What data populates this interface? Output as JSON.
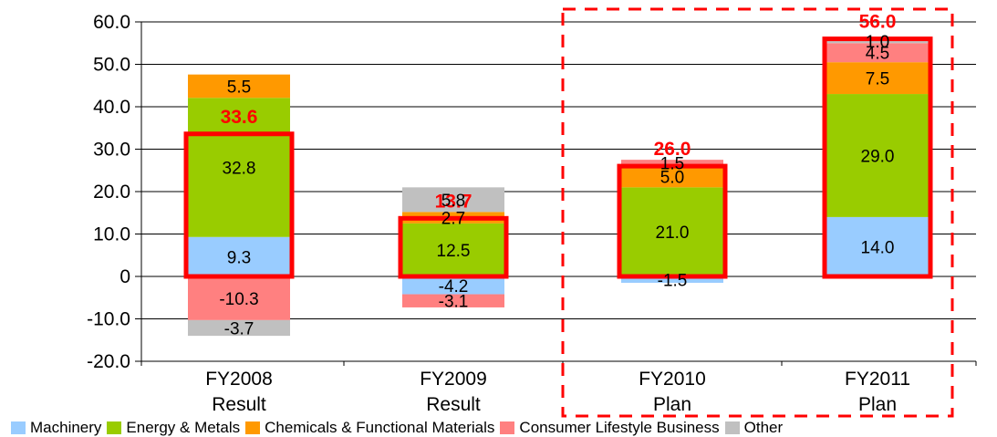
{
  "chart_data": {
    "type": "bar",
    "stacked": true,
    "categories": [
      "FY2008\nResult",
      "FY2009\nResult",
      "FY2010\nPlan",
      "FY2011\nPlan"
    ],
    "ylim": [
      -20,
      60
    ],
    "yticks": [
      60,
      50,
      40,
      30,
      20,
      10,
      0,
      -10,
      -20
    ],
    "ytick_labels": [
      "60.0",
      "50.0",
      "40.0",
      "30.0",
      "20.0",
      "10.0",
      "0",
      "-10.0",
      "-20.0"
    ],
    "grid": true,
    "series": [
      {
        "name": "Machinery",
        "color": "#99ccff",
        "values": [
          9.3,
          -4.2,
          -1.5,
          14.0
        ],
        "labels": [
          "9.3",
          "-4.2",
          "-1.5",
          "14.0"
        ]
      },
      {
        "name": "Energy & Metals",
        "color": "#99cc00",
        "values": [
          32.8,
          12.5,
          21.0,
          29.0
        ],
        "labels": [
          "32.8",
          "12.5",
          "21.0",
          "29.0"
        ]
      },
      {
        "name": "Chemicals & Functional Materials",
        "color": "#ff9900",
        "values": [
          5.5,
          2.7,
          5.0,
          7.5
        ],
        "labels": [
          "5.5",
          "2.7",
          "5.0",
          "7.5"
        ]
      },
      {
        "name": "Consumer Lifestyle Business",
        "color": "#ff8080",
        "values": [
          -10.3,
          -3.1,
          1.5,
          4.5
        ],
        "labels": [
          "-10.3",
          "-3.1",
          "1.5",
          "4.5"
        ]
      },
      {
        "name": "Other",
        "color": "#c0c0c0",
        "values": [
          -3.7,
          5.8,
          null,
          1.0
        ],
        "labels": [
          "-3.7",
          "5.8",
          "",
          "1.0"
        ]
      }
    ],
    "totals": [
      33.6,
      13.7,
      26.0,
      56.0
    ],
    "total_labels": [
      "33.6",
      "13.7",
      "26.0",
      "56.0"
    ],
    "total_color": "#ff0000",
    "highlight_color": "#ff0000",
    "plan_box_color": "#ff0000",
    "legend_position": "bottom"
  }
}
